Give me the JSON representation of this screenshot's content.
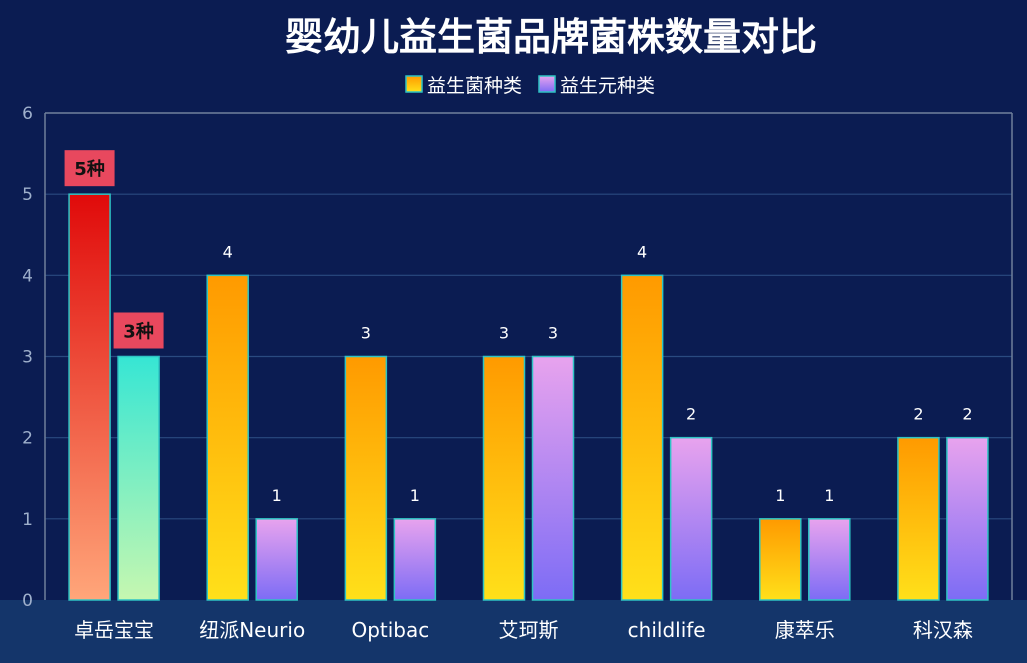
{
  "chart_data": {
    "type": "bar",
    "title": "婴幼儿益生菌品牌菌株数量对比",
    "xlabel": "",
    "ylabel": "",
    "ylim": [
      0,
      6
    ],
    "yticks": [
      "0",
      "1",
      "2",
      "3",
      "4",
      "5",
      "6"
    ],
    "legend_position": "top-center",
    "grid": true,
    "categories": [
      "卓岳宝宝",
      "纽派Neurio",
      "Optibac",
      "艾珂斯",
      "childlife",
      "康萃乐",
      "科汉森"
    ],
    "series": [
      {
        "name": "益生菌种类",
        "values": [
          5,
          4,
          3,
          3,
          4,
          1,
          2
        ]
      },
      {
        "name": "益生元种类",
        "values": [
          3,
          1,
          1,
          3,
          2,
          1,
          2
        ]
      }
    ],
    "data_labels": [
      [
        "5种",
        "4",
        "3",
        "3",
        "4",
        "1",
        "2"
      ],
      [
        "3种",
        "1",
        "1",
        "3",
        "2",
        "1",
        "2"
      ]
    ],
    "highlight_category": "卓岳宝宝",
    "colors": {
      "background": "#0b1c52",
      "axis_band": "#14356a",
      "grid": "#2a4a80",
      "bar_border": "#2ec4c4",
      "series1_gradient": [
        "#ff9a00",
        "#ffe01a"
      ],
      "series2_gradient": [
        "#e8a3ee",
        "#7d6cf5"
      ],
      "highlight1_gradient": [
        "#e00a0a",
        "#ffa67a"
      ],
      "highlight2_gradient": [
        "#36e6d4",
        "#c6f7b0"
      ],
      "highlight_label_bg": "#e8485e"
    }
  }
}
